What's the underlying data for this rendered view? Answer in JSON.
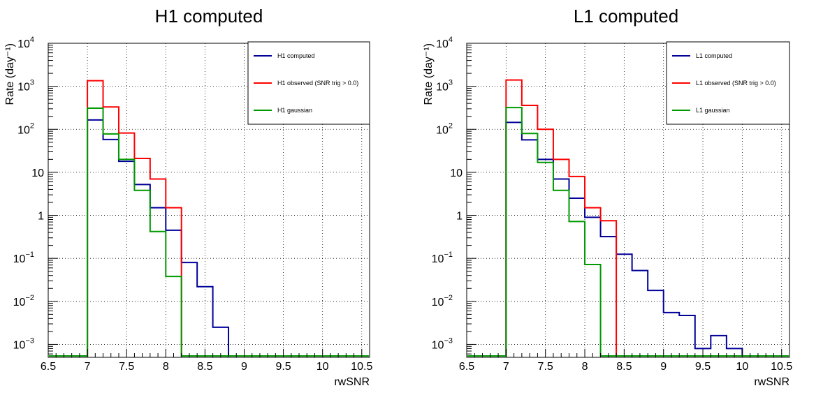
{
  "colors": {
    "computed": "#000099",
    "observed": "#ff0000",
    "gaussian": "#009900"
  },
  "chart_data": [
    {
      "type": "line",
      "style": "step-histogram",
      "title": "H1 computed",
      "xlabel": "rwSNR",
      "ylabel": "Rate (day⁻¹)",
      "xlim": [
        6.5,
        10.6
      ],
      "ylim": [
        0.0005,
        10000
      ],
      "yscale": "log",
      "grid": true,
      "legend_position": "top-right",
      "x_ticks": [
        "6.5",
        "7",
        "7.5",
        "8",
        "8.5",
        "9",
        "9.5",
        "10",
        "10.5"
      ],
      "y_ticks": [
        {
          "base": "10",
          "exp": "4",
          "value": 10000
        },
        {
          "base": "10",
          "exp": "3",
          "value": 1000
        },
        {
          "base": "10",
          "exp": "2",
          "value": 100
        },
        {
          "base": "10",
          "exp": "",
          "value": 10
        },
        {
          "base": "1",
          "exp": "",
          "value": 1
        },
        {
          "base": "10",
          "exp": "−1",
          "value": 0.1
        },
        {
          "base": "10",
          "exp": "−2",
          "value": 0.01
        },
        {
          "base": "10",
          "exp": "−3",
          "value": 0.001
        }
      ],
      "bin_edges": [
        7.0,
        7.2,
        7.4,
        7.6,
        7.8,
        8.0,
        8.2,
        8.4,
        8.6,
        8.8
      ],
      "series": [
        {
          "name": "H1 computed",
          "color_key": "computed",
          "values": [
            165,
            58,
            18,
            5.2,
            1.5,
            0.45,
            0.08,
            0.022,
            0.0025
          ]
        },
        {
          "name": "H1 observed (SNR trig > 0.0)",
          "color_key": "observed",
          "values": [
            1350,
            330,
            82,
            21,
            7,
            1.5
          ]
        },
        {
          "name": "H1 gaussian",
          "color_key": "gaussian",
          "values": [
            310,
            78,
            20,
            3.8,
            0.42,
            0.038
          ]
        }
      ]
    },
    {
      "type": "line",
      "style": "step-histogram",
      "title": "L1 computed",
      "xlabel": "rwSNR",
      "ylabel": "Rate (day⁻¹)",
      "xlim": [
        6.5,
        10.6
      ],
      "ylim": [
        0.0005,
        10000
      ],
      "yscale": "log",
      "grid": true,
      "legend_position": "top-right",
      "x_ticks": [
        "6.5",
        "7",
        "7.5",
        "8",
        "8.5",
        "9",
        "9.5",
        "10",
        "10.5"
      ],
      "y_ticks": [
        {
          "base": "10",
          "exp": "4",
          "value": 10000
        },
        {
          "base": "10",
          "exp": "3",
          "value": 1000
        },
        {
          "base": "10",
          "exp": "2",
          "value": 100
        },
        {
          "base": "10",
          "exp": "",
          "value": 10
        },
        {
          "base": "1",
          "exp": "",
          "value": 1
        },
        {
          "base": "10",
          "exp": "−1",
          "value": 0.1
        },
        {
          "base": "10",
          "exp": "−2",
          "value": 0.01
        },
        {
          "base": "10",
          "exp": "−3",
          "value": 0.001
        }
      ],
      "bin_edges": [
        7.0,
        7.2,
        7.4,
        7.6,
        7.8,
        8.0,
        8.2,
        8.4,
        8.6,
        8.8,
        9.0,
        9.2,
        9.4,
        9.6,
        9.8,
        10.0
      ],
      "series": [
        {
          "name": "L1 computed",
          "color_key": "computed",
          "values": [
            145,
            57,
            20,
            7,
            2.5,
            0.9,
            0.32,
            0.125,
            0.052,
            0.018,
            0.0055,
            0.0047,
            0.0008,
            0.0016,
            0.0008
          ]
        },
        {
          "name": "L1 observed (SNR trig > 0.0)",
          "color_key": "observed",
          "values": [
            1400,
            360,
            100,
            20,
            8,
            1.5,
            0.75
          ]
        },
        {
          "name": "L1 gaussian",
          "color_key": "gaussian",
          "values": [
            320,
            80,
            17,
            3.8,
            0.72,
            0.072
          ]
        }
      ]
    }
  ]
}
